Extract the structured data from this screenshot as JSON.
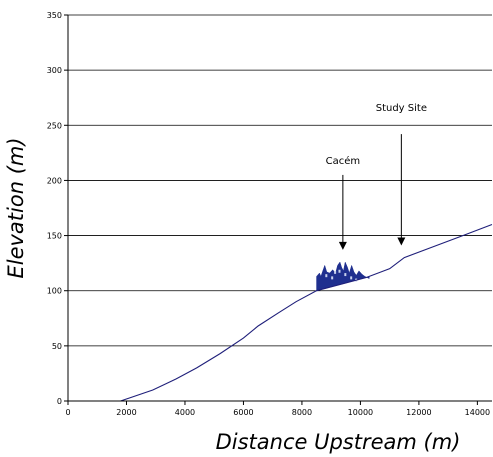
{
  "chart_data": {
    "type": "line",
    "title": "",
    "xlabel": "Distance Upstream (m)",
    "ylabel": "Elevation (m)",
    "xlim": [
      0,
      14500
    ],
    "ylim": [
      0,
      350
    ],
    "x_ticks": [
      0,
      2000,
      4000,
      6000,
      8000,
      10000,
      12000,
      14000
    ],
    "y_ticks": [
      0,
      50,
      100,
      150,
      200,
      250,
      300,
      350
    ],
    "grid": {
      "horizontal": true,
      "vertical": false
    },
    "legend": "none",
    "series": [
      {
        "color": "#1f1f7a",
        "x": [
          1800,
          2900,
          3700,
          4400,
          5200,
          6000,
          6500,
          7200,
          7800,
          8500,
          9500,
          10200,
          11000,
          11500,
          12500,
          13500,
          14500
        ],
        "y": [
          0,
          10,
          20,
          30,
          43,
          57,
          68,
          80,
          90,
          100,
          107,
          112,
          120,
          130,
          140,
          150,
          160
        ]
      }
    ],
    "annotations": [
      {
        "text": "Cacém",
        "x": 9400,
        "y_text": 215,
        "arrow_from": 205,
        "arrow_to": 137
      },
      {
        "text": "Study Site",
        "x": 11400,
        "y_text": 263,
        "arrow_from": 242,
        "arrow_to": 141
      }
    ],
    "town_block": {
      "color": "#1f2f8f",
      "x_start": 8500,
      "x_end": 10300,
      "skyline": [
        [
          8500,
          101
        ],
        [
          8500,
          113
        ],
        [
          8600,
          116
        ],
        [
          8650,
          113
        ],
        [
          8700,
          117
        ],
        [
          8780,
          123
        ],
        [
          8850,
          117
        ],
        [
          8950,
          116
        ],
        [
          9050,
          119
        ],
        [
          9150,
          116
        ],
        [
          9220,
          123
        ],
        [
          9300,
          126
        ],
        [
          9360,
          121
        ],
        [
          9420,
          118
        ],
        [
          9480,
          126
        ],
        [
          9560,
          121
        ],
        [
          9620,
          116
        ],
        [
          9700,
          123
        ],
        [
          9780,
          117
        ],
        [
          9860,
          114
        ],
        [
          9950,
          118
        ],
        [
          10050,
          115
        ],
        [
          10150,
          113
        ],
        [
          10300,
          111
        ]
      ]
    }
  }
}
